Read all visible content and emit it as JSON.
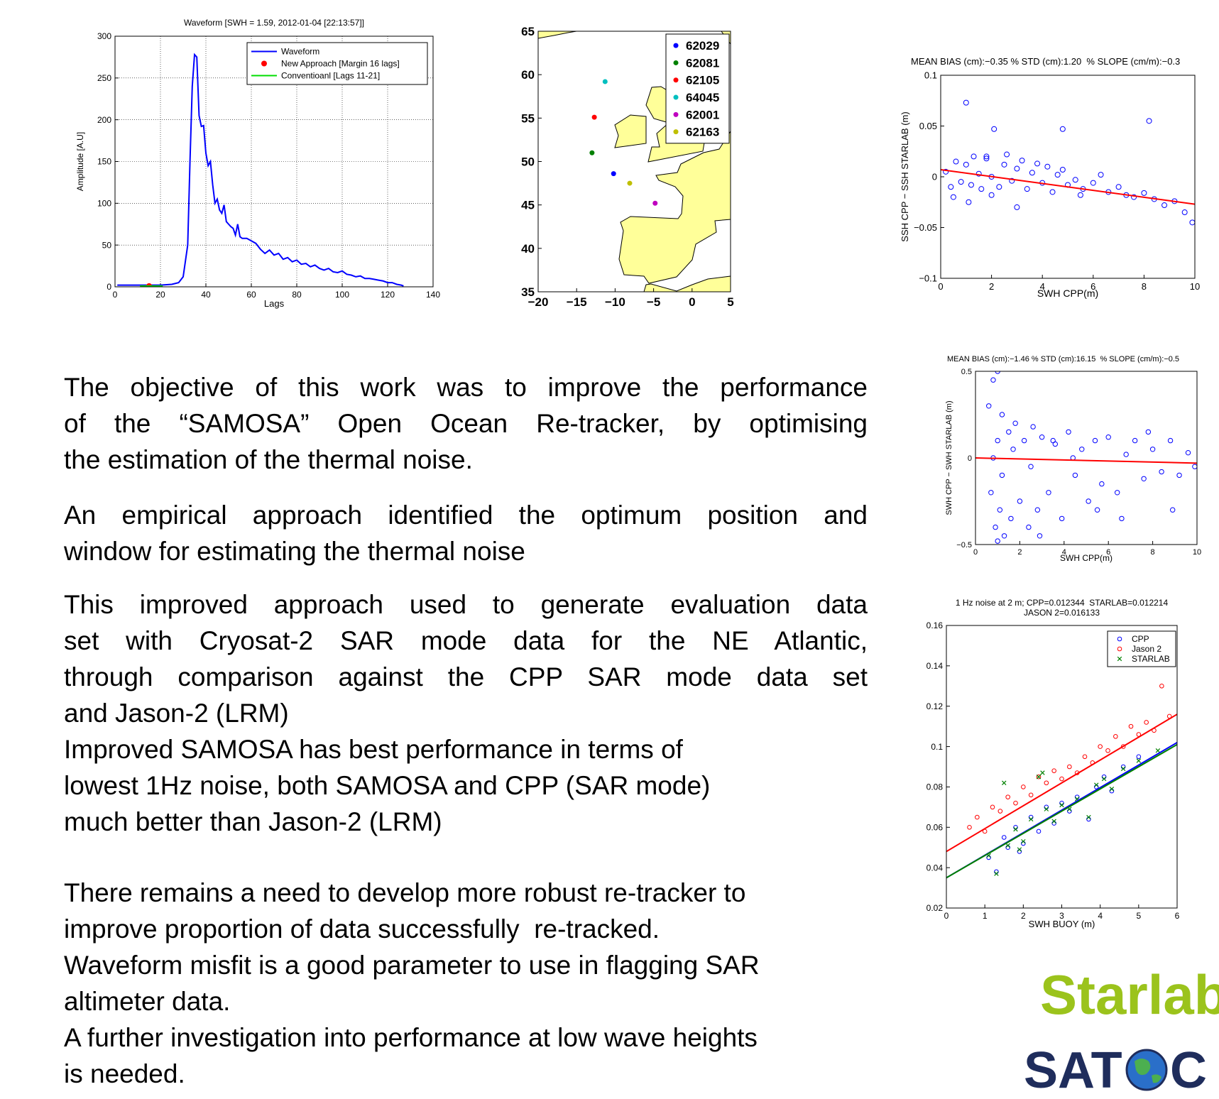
{
  "chart_data": [
    {
      "type": "line",
      "title": "Waveform [SWH = 1.59, 2012-01-04 [22:13:57]]",
      "x_label": "Lags",
      "y_label": "Amplitude [A.U]",
      "xlim": [
        0,
        140
      ],
      "xticks": [
        0,
        20,
        40,
        60,
        80,
        100,
        120,
        140
      ],
      "ylim": [
        0,
        300
      ],
      "yticks": [
        0,
        50,
        100,
        150,
        200,
        250,
        300
      ],
      "grid": true,
      "legend": "upper right",
      "series": [
        {
          "name": "Waveform",
          "color": "#0000ff",
          "mode": "line",
          "x": [
            1,
            5,
            10,
            15,
            20,
            25,
            28,
            30,
            32,
            33,
            34,
            35,
            36,
            37,
            38,
            39,
            40,
            41,
            42,
            43,
            44,
            45,
            46,
            47,
            48,
            49,
            50,
            51,
            52,
            53,
            54,
            55,
            56,
            58,
            60,
            62,
            64,
            66,
            68,
            70,
            72,
            74,
            76,
            78,
            80,
            82,
            84,
            86,
            88,
            90,
            92,
            94,
            96,
            98,
            100,
            102,
            104,
            106,
            108,
            110,
            112,
            114,
            116,
            118,
            120,
            122,
            124,
            126,
            127
          ],
          "values": [
            2,
            2,
            2,
            2,
            2,
            3,
            5,
            12,
            50,
            150,
            240,
            278,
            275,
            205,
            192,
            193,
            160,
            145,
            150,
            122,
            100,
            105,
            92,
            88,
            98,
            78,
            75,
            72,
            70,
            62,
            75,
            60,
            58,
            58,
            55,
            52,
            45,
            40,
            44,
            38,
            40,
            33,
            35,
            30,
            32,
            27,
            28,
            24,
            26,
            22,
            20,
            22,
            18,
            17,
            19,
            15,
            14,
            12,
            13,
            10,
            10,
            9,
            8,
            7,
            5,
            5,
            3,
            2,
            1
          ]
        },
        {
          "name": "New Approach [Margin 16 lags]",
          "color": "#ff0000",
          "mode": "markers",
          "marker": "dot",
          "x": [
            15
          ],
          "values": [
            1
          ]
        },
        {
          "name": "Conventioanl [Lags 11-21]",
          "color": "#00dd00",
          "mode": "line",
          "x": [
            11,
            21
          ],
          "values": [
            1,
            1
          ]
        }
      ]
    },
    {
      "type": "scatter",
      "map": true,
      "legend": "upper right",
      "xlim": [
        -20,
        5
      ],
      "xticks": [
        {
          "value": -20,
          "label": "−20"
        },
        {
          "value": -15,
          "label": "−15"
        },
        {
          "value": -10,
          "label": "−10"
        },
        {
          "value": -5,
          "label": "−5"
        },
        0,
        5
      ],
      "ylim": [
        35,
        65
      ],
      "yticks": [
        35,
        40,
        45,
        50,
        55,
        60,
        65
      ],
      "series": [
        {
          "name": "62029",
          "color": "#0000ff",
          "mode": "markers",
          "marker": "dot",
          "x": [
            -10.2
          ],
          "values": [
            48.6
          ]
        },
        {
          "name": "62081",
          "color": "#008000",
          "mode": "markers",
          "marker": "dot",
          "x": [
            -13.0
          ],
          "values": [
            51.0
          ]
        },
        {
          "name": "62105",
          "color": "#ff0000",
          "mode": "markers",
          "marker": "dot",
          "x": [
            -12.7
          ],
          "values": [
            55.1
          ]
        },
        {
          "name": "64045",
          "color": "#00bfbf",
          "mode": "markers",
          "marker": "dot",
          "x": [
            -11.3
          ],
          "values": [
            59.2
          ]
        },
        {
          "name": "62001",
          "color": "#bf00bf",
          "mode": "markers",
          "marker": "dot",
          "x": [
            -4.8
          ],
          "values": [
            45.2
          ]
        },
        {
          "name": "62163",
          "color": "#bfbf00",
          "mode": "markers",
          "marker": "dot",
          "x": [
            -8.1
          ],
          "values": [
            47.5
          ]
        }
      ]
    },
    {
      "type": "scatter",
      "title": "MEAN BIAS (cm):−0.35 % STD (cm):1.20  % SLOPE (cm/m):−0.3",
      "x_label": "SWH CPP(m)",
      "y_label": "SSH CPP − SSH STARLAB (m)",
      "xlim": [
        0,
        10
      ],
      "xticks": [
        0,
        2,
        4,
        6,
        8,
        10
      ],
      "ylim": [
        -0.1,
        0.1
      ],
      "yticks": [
        {
          "value": -0.1,
          "label": "−0.1"
        },
        {
          "value": -0.05,
          "label": "−0.05"
        },
        0,
        0.05,
        0.1
      ],
      "series": [
        {
          "color": "#0000ff",
          "mode": "markers",
          "marker": "o",
          "x": [
            0.2,
            0.4,
            0.6,
            0.8,
            1.0,
            1.0,
            1.2,
            1.3,
            1.5,
            1.6,
            1.8,
            2.0,
            2.1,
            2.3,
            2.5,
            2.6,
            2.8,
            3.0,
            3.2,
            3.4,
            3.6,
            3.8,
            4.0,
            4.2,
            4.4,
            4.6,
            4.8,
            5.0,
            5.3,
            5.6,
            6.0,
            6.3,
            6.6,
            7.0,
            7.3,
            7.6,
            8.0,
            8.4,
            8.8,
            9.2,
            9.6,
            9.9,
            1.1,
            2.0,
            4.8,
            8.2,
            0.5,
            3.0,
            1.8,
            5.5
          ],
          "values": [
            0.005,
            -0.01,
            0.015,
            -0.005,
            0.012,
            0.073,
            -0.008,
            0.02,
            0.003,
            -0.012,
            0.018,
            0.0,
            0.047,
            -0.01,
            0.012,
            0.022,
            -0.004,
            0.008,
            0.016,
            -0.012,
            0.004,
            0.013,
            -0.006,
            0.01,
            -0.015,
            0.002,
            0.007,
            -0.008,
            -0.003,
            -0.012,
            -0.006,
            0.002,
            -0.015,
            -0.01,
            -0.018,
            -0.02,
            -0.016,
            -0.022,
            -0.028,
            -0.024,
            -0.035,
            -0.045,
            -0.025,
            -0.018,
            0.047,
            0.055,
            -0.02,
            -0.03,
            0.02,
            -0.018
          ]
        },
        {
          "color": "#ff0000",
          "mode": "line",
          "x": [
            0,
            10
          ],
          "values": [
            0.007,
            -0.027
          ]
        }
      ]
    },
    {
      "type": "scatter",
      "title": "MEAN BIAS (cm):−1.46 % STD (cm):16.15  % SLOPE (cm/m):−0.5",
      "x_label": "SWH CPP(m)",
      "y_label": "SWH CPP − SWH STARLAB (m)",
      "xlim": [
        0,
        10
      ],
      "xticks": [
        0,
        2,
        4,
        6,
        8,
        10
      ],
      "ylim": [
        -0.5,
        0.5
      ],
      "yticks": [
        {
          "value": -0.5,
          "label": "−0.5"
        },
        0,
        0.5
      ],
      "series": [
        {
          "color": "#0000ff",
          "mode": "markers",
          "marker": "o",
          "x": [
            0.6,
            0.7,
            0.8,
            0.9,
            1.0,
            1.0,
            1.1,
            1.2,
            1.3,
            1.5,
            1.6,
            1.8,
            2.0,
            2.2,
            2.4,
            2.6,
            2.8,
            3.0,
            3.3,
            3.6,
            3.9,
            4.2,
            4.5,
            4.8,
            5.1,
            5.4,
            5.7,
            6.0,
            6.4,
            6.8,
            7.2,
            7.6,
            8.0,
            8.4,
            8.8,
            9.2,
            9.6,
            9.9,
            0.8,
            1.2,
            1.7,
            2.5,
            3.5,
            4.4,
            5.5,
            6.6,
            7.8,
            8.9,
            1.0,
            2.9
          ],
          "values": [
            0.3,
            -0.2,
            0.45,
            -0.4,
            0.5,
            0.1,
            -0.3,
            0.25,
            -0.45,
            0.15,
            -0.35,
            0.2,
            -0.25,
            0.1,
            -0.4,
            0.18,
            -0.3,
            0.12,
            -0.2,
            0.08,
            -0.35,
            0.15,
            -0.1,
            0.05,
            -0.25,
            0.1,
            -0.15,
            0.12,
            -0.2,
            0.02,
            0.1,
            -0.12,
            0.05,
            -0.08,
            0.1,
            -0.1,
            0.03,
            -0.05,
            0.0,
            -0.1,
            0.05,
            -0.05,
            0.1,
            0.0,
            -0.3,
            -0.35,
            0.15,
            -0.3,
            -0.48,
            -0.45
          ]
        },
        {
          "color": "#ff0000",
          "mode": "line",
          "x": [
            0,
            10
          ],
          "values": [
            0.0,
            -0.03
          ]
        }
      ]
    },
    {
      "type": "scatter",
      "title": "1 Hz noise at 2 m; CPP=0.012344  STARLAB=0.012214",
      "subtitle": "JASON 2=0.016133",
      "x_label": "SWH BUOY (m)",
      "xlim": [
        0,
        6
      ],
      "xticks": [
        0,
        1,
        2,
        3,
        4,
        5,
        6
      ],
      "ylim": [
        0.02,
        0.16
      ],
      "yticks": [
        0.02,
        0.04,
        0.06,
        0.08,
        0.1,
        0.12,
        0.14,
        0.16
      ],
      "legend": "upper right",
      "series": [
        {
          "name": "CPP",
          "color": "#0000ff",
          "mode": "markers",
          "marker": "o",
          "x": [
            1.1,
            1.3,
            1.5,
            1.6,
            1.8,
            1.9,
            2.0,
            2.2,
            2.4,
            2.6,
            2.8,
            3.0,
            3.2,
            3.4,
            3.7,
            3.9,
            4.1,
            4.3,
            4.6,
            5.0
          ],
          "values": [
            0.045,
            0.038,
            0.055,
            0.05,
            0.06,
            0.048,
            0.052,
            0.065,
            0.058,
            0.07,
            0.062,
            0.072,
            0.068,
            0.075,
            0.064,
            0.08,
            0.085,
            0.078,
            0.09,
            0.095
          ]
        },
        {
          "name": "Jason 2",
          "color": "#ff0000",
          "mode": "markers",
          "marker": "o",
          "x": [
            0.6,
            0.8,
            1.0,
            1.2,
            1.4,
            1.6,
            1.8,
            2.0,
            2.2,
            2.4,
            2.6,
            2.8,
            3.0,
            3.2,
            3.4,
            3.6,
            3.8,
            4.0,
            4.2,
            4.4,
            4.6,
            4.8,
            5.0,
            5.2,
            5.4,
            5.6,
            5.8
          ],
          "values": [
            0.06,
            0.065,
            0.058,
            0.07,
            0.068,
            0.075,
            0.072,
            0.08,
            0.076,
            0.085,
            0.082,
            0.088,
            0.084,
            0.09,
            0.087,
            0.095,
            0.092,
            0.1,
            0.098,
            0.105,
            0.1,
            0.11,
            0.106,
            0.112,
            0.108,
            0.13,
            0.115
          ]
        },
        {
          "name": "STARLAB",
          "color": "#008000",
          "mode": "markers",
          "marker": "x",
          "x": [
            1.1,
            1.3,
            1.5,
            1.6,
            1.8,
            1.9,
            2.0,
            2.2,
            2.4,
            2.6,
            2.8,
            3.0,
            3.2,
            3.4,
            3.7,
            3.9,
            4.1,
            4.3,
            4.6,
            5.0,
            2.5,
            5.5
          ],
          "values": [
            0.046,
            0.037,
            0.082,
            0.051,
            0.059,
            0.049,
            0.053,
            0.064,
            0.085,
            0.069,
            0.063,
            0.071,
            0.069,
            0.074,
            0.065,
            0.081,
            0.084,
            0.079,
            0.089,
            0.093,
            0.087,
            0.098
          ]
        },
        {
          "color": "#ff0000",
          "mode": "line",
          "x": [
            0,
            6
          ],
          "values": [
            0.048,
            0.116
          ]
        },
        {
          "color": "#0000ff",
          "mode": "line",
          "x": [
            0,
            6
          ],
          "values": [
            0.035,
            0.102
          ]
        },
        {
          "color": "#008000",
          "mode": "line",
          "x": [
            0,
            6
          ],
          "values": [
            0.035,
            0.101
          ]
        }
      ]
    }
  ],
  "text": {
    "paragraphs": [
      {
        "justified": true,
        "lines": [
          "The objective of this work was to improve the performance",
          "of the “SAMOSA” Open Ocean Re-tracker, by optimising",
          "the estimation of the thermal noise."
        ]
      },
      {
        "justified": true,
        "lines": [
          "An empirical approach identified the optimum position and",
          "window for estimating the thermal noise"
        ]
      },
      {
        "justified": true,
        "lines": [
          "This improved approach used to generate evaluation data",
          "set with Cryosat-2 SAR mode data for the NE Atlantic,",
          "through comparison against the CPP SAR mode data set",
          "and Jason-2 (LRM)"
        ]
      },
      {
        "justified": false,
        "lines": [
          "Improved SAMOSA has best performance in terms of",
          "lowest 1Hz noise, both SAMOSA and CPP (SAR mode)",
          "much better than Jason-2 (LRM)"
        ]
      },
      {
        "justified": false,
        "lines": [
          "There remains a need to develop more robust re-tracker to",
          "improve proportion of data successfully  re-tracked."
        ]
      },
      {
        "justified": false,
        "lines": [
          "Waveform misfit is a good parameter to use in flagging SAR",
          "altimeter data."
        ]
      },
      {
        "justified": false,
        "lines": [
          "A further investigation into performance at low wave heights",
          "is needed."
        ]
      }
    ]
  },
  "logos": {
    "starlab": "Starlab",
    "satoc_left": "SAT",
    "satoc_right": "C"
  }
}
